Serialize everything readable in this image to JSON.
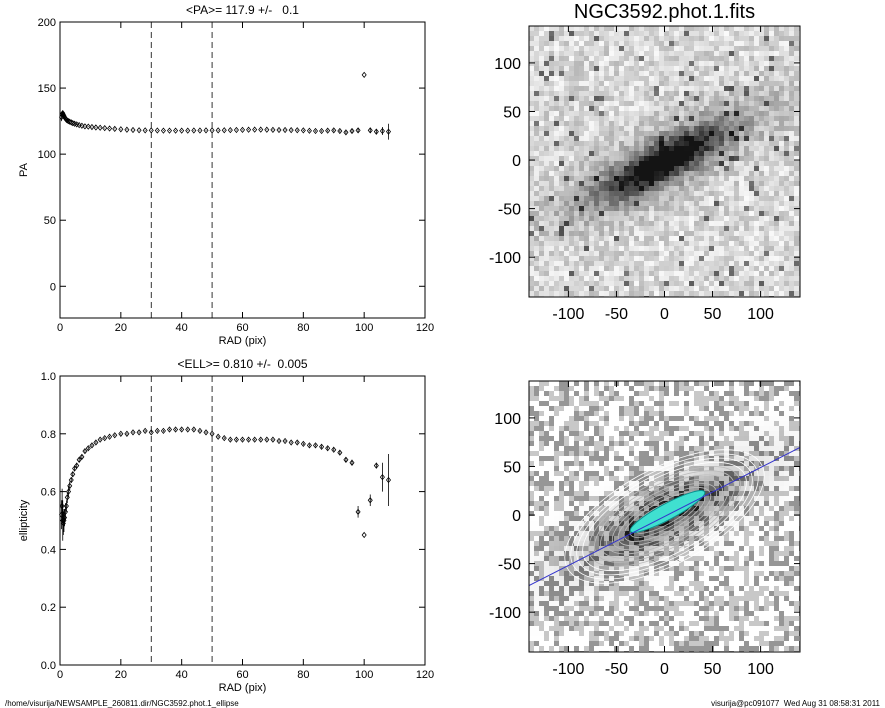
{
  "chart_data": [
    {
      "type": "scatter",
      "title": "<PA>= 117.9 +/-   0.1",
      "xlabel": "RAD (pix)",
      "ylabel": "PA",
      "xlim": [
        0,
        120
      ],
      "ylim": [
        -24,
        200
      ],
      "xticks": [
        0,
        20,
        40,
        60,
        80,
        100,
        120
      ],
      "yticks": [
        0,
        50,
        100,
        150,
        200
      ],
      "vlines": [
        30,
        50
      ],
      "color": "#000000",
      "x": [
        0.5,
        0.7,
        0.9,
        1.1,
        1.3,
        1.5,
        1.8,
        2.1,
        2.4,
        2.8,
        3.2,
        3.7,
        4.2,
        4.8,
        5.5,
        6.3,
        7.2,
        8.2,
        9.3,
        10.5,
        11.8,
        13.2,
        14.7,
        16.3,
        18,
        20,
        22,
        24,
        26,
        28,
        30,
        32,
        34,
        36,
        38,
        40,
        42,
        44,
        46,
        48,
        50,
        52,
        54,
        56,
        58,
        60,
        62,
        64,
        66,
        68,
        70,
        72,
        74,
        76,
        78,
        80,
        82,
        84,
        86,
        88,
        90,
        92,
        94,
        96,
        98,
        100,
        102,
        104,
        106,
        108
      ],
      "values": [
        128,
        130,
        131,
        130,
        129,
        128,
        127,
        126,
        125.5,
        125,
        124.5,
        124,
        123.5,
        123,
        122.5,
        122,
        121.5,
        121,
        120.8,
        120.5,
        120.2,
        120,
        119.7,
        119.4,
        119.1,
        118.8,
        118.5,
        118.3,
        118.1,
        118,
        118,
        117.9,
        117.8,
        117.8,
        117.8,
        117.8,
        117.8,
        117.9,
        117.9,
        118,
        118,
        118,
        118.1,
        118.2,
        118.3,
        118.4,
        118.5,
        118.6,
        118.6,
        118.5,
        118.4,
        118.3,
        118.3,
        118.2,
        118.1,
        118,
        117.7,
        117.5,
        117.5,
        117.8,
        118,
        117.5,
        116.5,
        117.5,
        118,
        160,
        118,
        117,
        117.5,
        117
      ],
      "errors": [
        3,
        2.5,
        2,
        2,
        1.5,
        1.5,
        1.2,
        1,
        1,
        0.8,
        0.6,
        0.5,
        0.5,
        0.4,
        0.4,
        0.3,
        0.3,
        0.3,
        0.3,
        0.3,
        0.3,
        0.3,
        0.3,
        0.3,
        0.3,
        0.3,
        0.3,
        0.3,
        0.3,
        0.3,
        0.3,
        0.3,
        0.3,
        0.3,
        0.3,
        0.3,
        0.3,
        0.3,
        0.3,
        0.3,
        0.3,
        0.3,
        0.3,
        0.3,
        0.3,
        0.3,
        0.3,
        0.3,
        0.3,
        0.3,
        0.4,
        0.4,
        0.4,
        0.4,
        0.5,
        0.5,
        0.5,
        0.6,
        0.6,
        0.7,
        0.8,
        0.9,
        1,
        1.2,
        1.5,
        0,
        2,
        2,
        3,
        6
      ]
    },
    {
      "type": "image",
      "title": "NGC3592.phot.1.fits",
      "xlim": [
        -141,
        141
      ],
      "ylim": [
        -141,
        138
      ],
      "xticks": [
        -100,
        -50,
        0,
        50,
        100
      ],
      "yticks": [
        -100,
        -50,
        0,
        50,
        100
      ]
    },
    {
      "type": "scatter",
      "title": "<ELL>= 0.810 +/-  0.005",
      "xlabel": "RAD (pix)",
      "ylabel": "ellipticity",
      "xlim": [
        0,
        120
      ],
      "ylim": [
        0,
        1
      ],
      "xticks": [
        0,
        20,
        40,
        60,
        80,
        100,
        120
      ],
      "yticks": [
        {
          "value": 0,
          "label": "0.0"
        },
        {
          "value": 0.2,
          "label": "0.2"
        },
        {
          "value": 0.4,
          "label": "0.4"
        },
        {
          "value": 0.6,
          "label": "0.6"
        },
        {
          "value": 0.8,
          "label": "0.8"
        },
        {
          "value": 1,
          "label": "1.0"
        }
      ],
      "vlines": [
        30,
        50
      ],
      "color": "#000000",
      "x": [
        0.5,
        0.7,
        0.9,
        1.1,
        1.3,
        1.5,
        1.8,
        2.1,
        2.4,
        2.8,
        3.2,
        3.7,
        4.2,
        4.8,
        5.5,
        6.3,
        7.2,
        8.2,
        9.3,
        10.5,
        11.8,
        13.2,
        14.7,
        16.3,
        18,
        20,
        22,
        24,
        26,
        28,
        30,
        32,
        34,
        36,
        38,
        40,
        42,
        44,
        46,
        48,
        50,
        52,
        54,
        56,
        58,
        60,
        62,
        64,
        66,
        68,
        70,
        72,
        74,
        76,
        78,
        80,
        82,
        84,
        86,
        88,
        90,
        92,
        94,
        96,
        98,
        100,
        102,
        104,
        106,
        108
      ],
      "values": [
        0.52,
        0.55,
        0.5,
        0.49,
        0.5,
        0.51,
        0.53,
        0.55,
        0.58,
        0.6,
        0.62,
        0.64,
        0.66,
        0.68,
        0.69,
        0.71,
        0.72,
        0.74,
        0.75,
        0.76,
        0.77,
        0.78,
        0.785,
        0.79,
        0.795,
        0.8,
        0.8,
        0.805,
        0.805,
        0.81,
        0.805,
        0.81,
        0.81,
        0.815,
        0.815,
        0.815,
        0.815,
        0.815,
        0.81,
        0.805,
        0.8,
        0.79,
        0.785,
        0.78,
        0.78,
        0.78,
        0.78,
        0.78,
        0.78,
        0.78,
        0.78,
        0.775,
        0.775,
        0.77,
        0.77,
        0.765,
        0.76,
        0.76,
        0.755,
        0.75,
        0.745,
        0.735,
        0.71,
        0.7,
        0.53,
        0.45,
        0.57,
        0.69,
        0.65,
        0.64
      ],
      "errors": [
        0.05,
        0.06,
        0.07,
        0.04,
        0.04,
        0.03,
        0.03,
        0.02,
        0.02,
        0.02,
        0.015,
        0.01,
        0.01,
        0.01,
        0.01,
        0.008,
        0.006,
        0.005,
        0.005,
        0.004,
        0.004,
        0.003,
        0.003,
        0.003,
        0.003,
        0.003,
        0.003,
        0.003,
        0.003,
        0.003,
        0.003,
        0.003,
        0.003,
        0.003,
        0.003,
        0.003,
        0.003,
        0.003,
        0.003,
        0.003,
        0.003,
        0.003,
        0.003,
        0.003,
        0.003,
        0.003,
        0.003,
        0.003,
        0.003,
        0.003,
        0.003,
        0.003,
        0.003,
        0.003,
        0.004,
        0.004,
        0.004,
        0.004,
        0.005,
        0.005,
        0.005,
        0.006,
        0.008,
        0.01,
        0.02,
        0,
        0.02,
        0.01,
        0.05,
        0.09
      ]
    },
    {
      "type": "image",
      "xlim": [
        -141,
        141
      ],
      "ylim": [
        -141,
        138
      ],
      "xticks": [
        -100,
        -50,
        0,
        50,
        100
      ],
      "yticks": [
        -100,
        -50,
        0,
        50,
        100
      ]
    }
  ],
  "footer": {
    "path": "/home/visurija/NEWSAMPLE_260811.dir/NGC3592.phot.1_ellipse",
    "stamp": "visurija@pc091077  Wed Aug 31 08:58:31 2011"
  }
}
